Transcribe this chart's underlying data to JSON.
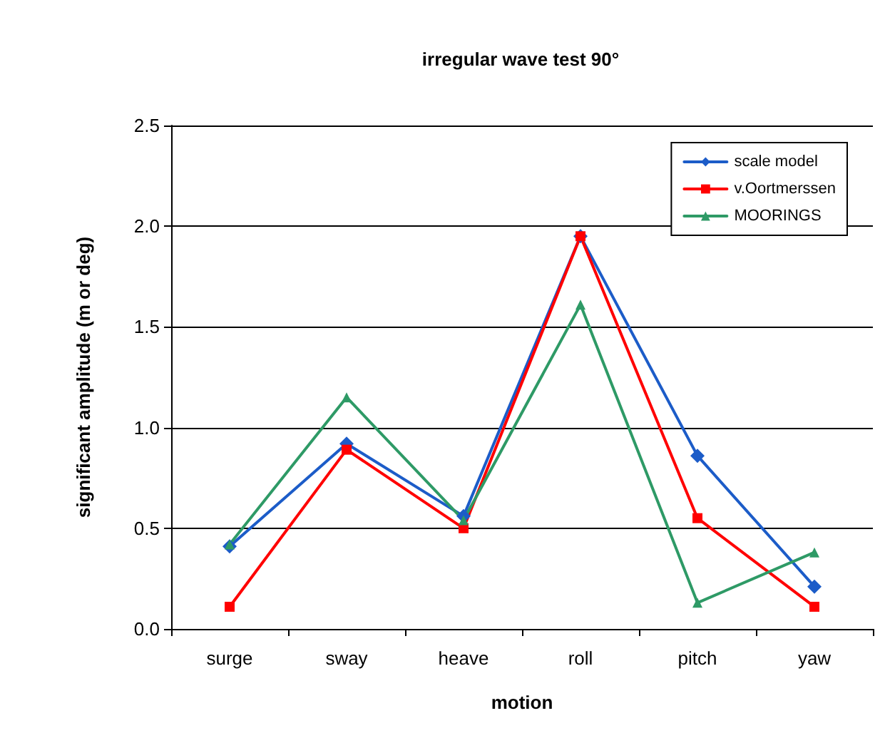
{
  "chart_data": {
    "type": "line",
    "title": "irregular wave test 90°",
    "xlabel": "motion",
    "ylabel": "significant amplitude (m or deg)",
    "categories": [
      "surge",
      "sway",
      "heave",
      "roll",
      "pitch",
      "yaw"
    ],
    "series": [
      {
        "name": "scale model",
        "color": "#1c5cc8",
        "marker": "diamond",
        "values": [
          0.41,
          0.92,
          0.56,
          1.95,
          0.86,
          0.21
        ]
      },
      {
        "name": "v.Oortmerssen",
        "color": "#ff0000",
        "marker": "square",
        "values": [
          0.11,
          0.89,
          0.5,
          1.95,
          0.55,
          0.11
        ]
      },
      {
        "name": "MOORINGS",
        "color": "#2e9a66",
        "marker": "triangle",
        "values": [
          0.42,
          1.15,
          0.54,
          1.61,
          0.13,
          0.38
        ]
      }
    ],
    "ylim": [
      0,
      2.5
    ],
    "yticks": [
      {
        "value": 0,
        "label": "0.0"
      },
      0.5,
      {
        "value": 1,
        "label": "1.0"
      },
      1.5,
      {
        "value": 2,
        "label": "2.0"
      },
      2.5
    ],
    "grid": "y",
    "legend": "top right"
  }
}
